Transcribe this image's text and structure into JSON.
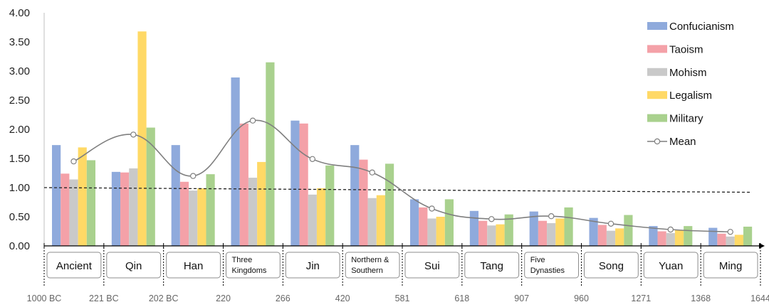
{
  "chart_data": {
    "type": "bar",
    "title": "",
    "xlabel": "",
    "ylabel": "",
    "ylim": [
      0,
      4
    ],
    "yticks": [
      "0.00",
      "0.50",
      "1.00",
      "1.50",
      "2.00",
      "2.50",
      "3.00",
      "3.50",
      "4.00"
    ],
    "categories": [
      [
        "Ancient"
      ],
      [
        "Qin"
      ],
      [
        "Han"
      ],
      [
        "Three",
        "Kingdoms"
      ],
      [
        "Jin"
      ],
      [
        "Northern &",
        "Southern"
      ],
      [
        "Sui"
      ],
      [
        "Tang"
      ],
      [
        "Five",
        "Dynasties"
      ],
      [
        "Song"
      ],
      [
        "Yuan"
      ],
      [
        "Ming"
      ]
    ],
    "boundary_years": [
      "1000 BC",
      "221 BC",
      "202 BC",
      "220",
      "266",
      "420",
      "581",
      "618",
      "907",
      "960",
      "1271",
      "1368",
      "1644"
    ],
    "series": [
      {
        "name": "Confucianism",
        "color": "#8faadc",
        "values": [
          1.73,
          1.27,
          1.73,
          2.89,
          2.15,
          1.73,
          0.8,
          0.6,
          0.59,
          0.48,
          0.34,
          0.31
        ]
      },
      {
        "name": "Taoism",
        "color": "#f4a1a8",
        "values": [
          1.24,
          1.26,
          1.1,
          2.1,
          2.1,
          1.48,
          0.66,
          0.43,
          0.43,
          0.36,
          0.25,
          0.21
        ]
      },
      {
        "name": "Mohism",
        "color": "#c9c9c9",
        "values": [
          1.14,
          1.33,
          0.95,
          1.17,
          0.88,
          0.82,
          0.47,
          0.35,
          0.39,
          0.26,
          0.22,
          0.16
        ]
      },
      {
        "name": "Legalism",
        "color": "#ffd966",
        "values": [
          1.69,
          3.68,
          0.99,
          1.44,
          0.99,
          0.87,
          0.5,
          0.37,
          0.47,
          0.3,
          0.27,
          0.19
        ]
      },
      {
        "name": "Military",
        "color": "#a9d18e",
        "values": [
          1.47,
          2.03,
          1.23,
          3.15,
          1.38,
          1.41,
          0.8,
          0.54,
          0.66,
          0.53,
          0.34,
          0.33
        ]
      }
    ],
    "mean": {
      "name": "Mean",
      "color": "#7f7f7f",
      "values": [
        1.45,
        1.91,
        1.2,
        2.15,
        1.49,
        1.26,
        0.64,
        0.46,
        0.51,
        0.38,
        0.28,
        0.24
      ]
    },
    "reference_line": {
      "y_start": 1.0,
      "y_end": 0.92
    },
    "legend_position": "top-right",
    "grid": false
  }
}
